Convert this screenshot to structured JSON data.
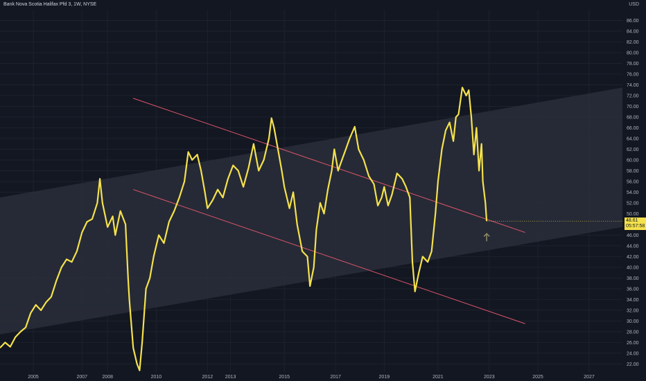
{
  "header": {
    "title": "Bank Nova Scotia Halifax Pfd 3, 1W, NYSE",
    "currency": "USD"
  },
  "price_tag": {
    "price": "48.61",
    "countdown": "05:57:58"
  },
  "colors": {
    "background": "#131722",
    "price_line": "#f5e24c",
    "channel_fill": "#2a2e39",
    "trend_line": "#e0566b",
    "arrow": "#8a8560"
  },
  "chart_data": {
    "type": "line",
    "title": "Bank Nova Scotia Halifax Pfd 3, 1W, NYSE",
    "ylabel": "USD",
    "ylim": [
      20.5,
      88
    ],
    "y_ticks": [
      "86.00",
      "84.00",
      "82.00",
      "80.00",
      "78.00",
      "76.00",
      "74.00",
      "72.00",
      "70.00",
      "68.00",
      "66.00",
      "64.00",
      "62.00",
      "60.00",
      "58.00",
      "56.00",
      "54.00",
      "52.00",
      "50.00",
      "48.00",
      "46.00",
      "44.00",
      "42.00",
      "40.00",
      "38.00",
      "36.00",
      "34.00",
      "32.00",
      "30.00",
      "28.00",
      "26.00",
      "24.00",
      "22.00"
    ],
    "x_ticks": [
      "2005",
      "2007",
      "2008",
      "2010",
      "2012",
      "2013",
      "2015",
      "2017",
      "2019",
      "2021",
      "2023",
      "2025",
      "2027"
    ],
    "x_tick_years": [
      2005.3,
      2007.2,
      2008.2,
      2010.1,
      2012.1,
      2013.0,
      2015.1,
      2017.1,
      2019.0,
      2021.1,
      2023.1,
      2025.0,
      2027.0
    ],
    "xlim": [
      2004.0,
      2028.3
    ],
    "last_price": 48.61,
    "series": [
      {
        "values_xy": [
          [
            2004.0,
            25.0
          ],
          [
            2004.2,
            26.0
          ],
          [
            2004.4,
            25.2
          ],
          [
            2004.6,
            27.0
          ],
          [
            2004.8,
            28.0
          ],
          [
            2005.0,
            28.8
          ],
          [
            2005.2,
            31.5
          ],
          [
            2005.4,
            33.0
          ],
          [
            2005.6,
            32.0
          ],
          [
            2005.8,
            33.5
          ],
          [
            2006.0,
            34.5
          ],
          [
            2006.2,
            37.5
          ],
          [
            2006.4,
            40.0
          ],
          [
            2006.6,
            41.5
          ],
          [
            2006.8,
            41.0
          ],
          [
            2007.0,
            43.0
          ],
          [
            2007.2,
            46.5
          ],
          [
            2007.4,
            48.5
          ],
          [
            2007.6,
            49.0
          ],
          [
            2007.8,
            52.0
          ],
          [
            2007.9,
            56.5
          ],
          [
            2008.0,
            52.0
          ],
          [
            2008.2,
            47.5
          ],
          [
            2008.4,
            49.5
          ],
          [
            2008.5,
            46.0
          ],
          [
            2008.7,
            50.5
          ],
          [
            2008.9,
            48.0
          ],
          [
            2009.0,
            38.0
          ],
          [
            2009.05,
            34.0
          ],
          [
            2009.2,
            25.0
          ],
          [
            2009.35,
            22.0
          ],
          [
            2009.45,
            20.8
          ],
          [
            2009.55,
            26.0
          ],
          [
            2009.7,
            36.0
          ],
          [
            2009.85,
            38.0
          ],
          [
            2010.0,
            42.0
          ],
          [
            2010.2,
            46.0
          ],
          [
            2010.4,
            44.5
          ],
          [
            2010.6,
            48.5
          ],
          [
            2010.8,
            50.5
          ],
          [
            2011.0,
            53.0
          ],
          [
            2011.2,
            56.0
          ],
          [
            2011.35,
            61.5
          ],
          [
            2011.5,
            60.0
          ],
          [
            2011.7,
            61.0
          ],
          [
            2011.85,
            58.0
          ],
          [
            2012.0,
            54.0
          ],
          [
            2012.1,
            51.0
          ],
          [
            2012.3,
            52.5
          ],
          [
            2012.5,
            54.5
          ],
          [
            2012.7,
            53.0
          ],
          [
            2012.9,
            56.5
          ],
          [
            2013.1,
            59.0
          ],
          [
            2013.3,
            58.0
          ],
          [
            2013.5,
            55.0
          ],
          [
            2013.7,
            58.5
          ],
          [
            2013.9,
            63.0
          ],
          [
            2014.1,
            58.0
          ],
          [
            2014.3,
            60.0
          ],
          [
            2014.5,
            64.0
          ],
          [
            2014.6,
            67.8
          ],
          [
            2014.7,
            66.0
          ],
          [
            2014.85,
            62.0
          ],
          [
            2015.0,
            58.0
          ],
          [
            2015.1,
            55.0
          ],
          [
            2015.3,
            51.0
          ],
          [
            2015.45,
            54.0
          ],
          [
            2015.6,
            48.0
          ],
          [
            2015.8,
            43.0
          ],
          [
            2016.0,
            42.0
          ],
          [
            2016.1,
            36.5
          ],
          [
            2016.25,
            40.0
          ],
          [
            2016.35,
            47.0
          ],
          [
            2016.5,
            52.0
          ],
          [
            2016.65,
            50.0
          ],
          [
            2016.8,
            54.5
          ],
          [
            2016.95,
            58.0
          ],
          [
            2017.05,
            62.0
          ],
          [
            2017.2,
            58.0
          ],
          [
            2017.35,
            60.0
          ],
          [
            2017.5,
            62.0
          ],
          [
            2017.65,
            64.0
          ],
          [
            2017.85,
            66.2
          ],
          [
            2018.0,
            62.0
          ],
          [
            2018.2,
            60.0
          ],
          [
            2018.4,
            57.0
          ],
          [
            2018.6,
            55.5
          ],
          [
            2018.75,
            51.5
          ],
          [
            2018.9,
            53.0
          ],
          [
            2019.0,
            55.0
          ],
          [
            2019.15,
            51.5
          ],
          [
            2019.3,
            53.5
          ],
          [
            2019.5,
            57.5
          ],
          [
            2019.7,
            56.5
          ],
          [
            2019.85,
            55.0
          ],
          [
            2020.0,
            53.0
          ],
          [
            2020.1,
            41.0
          ],
          [
            2020.2,
            35.5
          ],
          [
            2020.35,
            39.0
          ],
          [
            2020.5,
            42.0
          ],
          [
            2020.7,
            41.0
          ],
          [
            2020.85,
            43.0
          ],
          [
            2021.0,
            50.0
          ],
          [
            2021.1,
            56.0
          ],
          [
            2021.25,
            62.0
          ],
          [
            2021.4,
            65.5
          ],
          [
            2021.55,
            67.0
          ],
          [
            2021.7,
            63.5
          ],
          [
            2021.8,
            68.0
          ],
          [
            2021.9,
            68.5
          ],
          [
            2022.05,
            73.5
          ],
          [
            2022.2,
            72.0
          ],
          [
            2022.3,
            73.0
          ],
          [
            2022.4,
            68.0
          ],
          [
            2022.5,
            61.0
          ],
          [
            2022.6,
            66.0
          ],
          [
            2022.7,
            58.0
          ],
          [
            2022.8,
            63.0
          ],
          [
            2022.85,
            56.0
          ],
          [
            2022.95,
            52.0
          ],
          [
            2023.0,
            48.61
          ]
        ]
      }
    ],
    "channel": {
      "upper": [
        [
          2004.0,
          53.0
        ],
        [
          2028.3,
          73.5
        ]
      ],
      "lower": [
        [
          2004.0,
          27.5
        ],
        [
          2028.3,
          47.5
        ]
      ]
    },
    "trend_lines": [
      [
        [
          2009.2,
          71.5
        ],
        [
          2024.5,
          46.5
        ]
      ],
      [
        [
          2009.2,
          54.5
        ],
        [
          2024.5,
          29.5
        ]
      ]
    ],
    "annotations": [
      {
        "type": "up-arrow",
        "x": 2023.0,
        "y": 45.5
      }
    ]
  }
}
